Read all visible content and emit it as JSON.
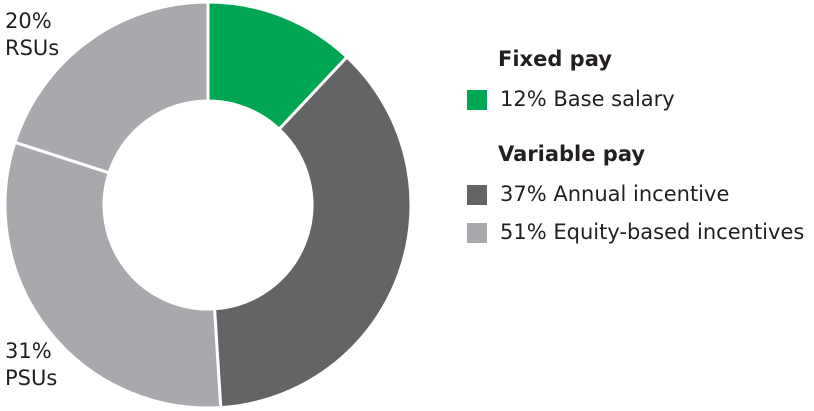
{
  "chart_data": {
    "type": "donut",
    "segments": [
      {
        "value": 12,
        "color": "#00a651"
      },
      {
        "value": 37,
        "color": "#636466"
      },
      {
        "value": 31,
        "value_label": "31%",
        "label": "PSUs",
        "color": "#a7a9ac"
      },
      {
        "value": 20,
        "value_label": "20%",
        "label": "RSUs",
        "color": "#a7a9ac"
      }
    ],
    "legend": [
      {
        "heading": "Fixed pay",
        "items": [
          {
            "label": "12% Base salary",
            "color": "#00a651"
          }
        ]
      },
      {
        "heading": "Variable pay",
        "items": [
          {
            "label": "37% Annual incentive",
            "color": "#636466"
          },
          {
            "label": "51% Equity-based incentives",
            "color": "#a7a9ac"
          }
        ]
      }
    ]
  }
}
